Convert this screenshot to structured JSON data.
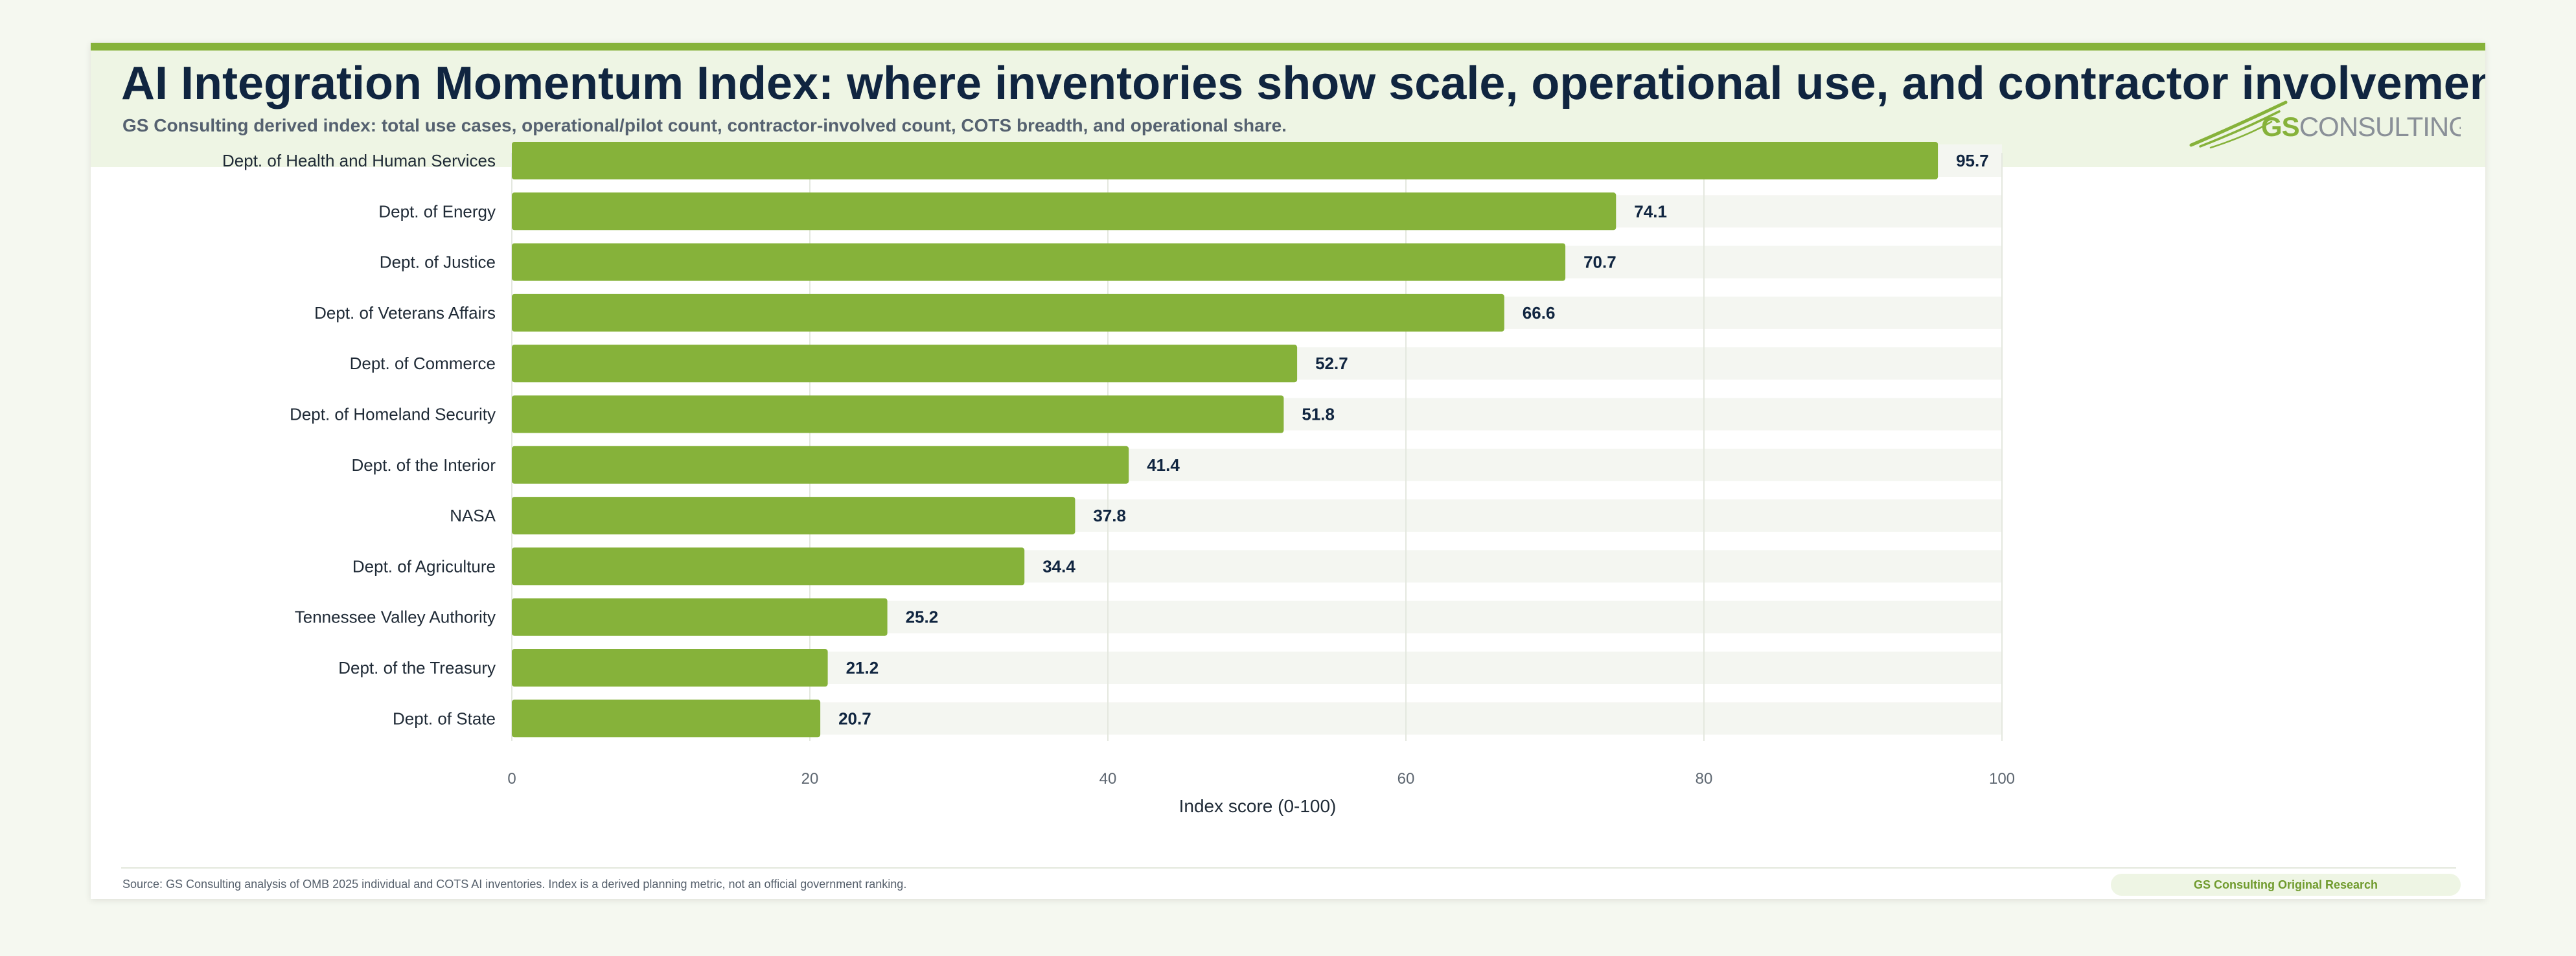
{
  "header": {
    "title": "AI Integration Momentum Index: where inventories show scale, operational use, and contractor involvement",
    "subtitle": "GS Consulting derived index: total use cases, operational/pilot count, contractor-involved count, COTS breadth, and operational share."
  },
  "logo": {
    "text_gs": "GS",
    "text_rest": "CONSULTING",
    "icon": "swoosh-logo-icon"
  },
  "colors": {
    "accent": "#86b23a",
    "bar": "#86b23a",
    "track": "#f4f6f1",
    "title": "#102540",
    "header_band": "#eef5e4"
  },
  "chart_data": {
    "type": "bar",
    "orientation": "horizontal",
    "categories": [
      "Dept. of Health and Human Services",
      "Dept. of Energy",
      "Dept. of Justice",
      "Dept. of Veterans Affairs",
      "Dept. of Commerce",
      "Dept. of Homeland Security",
      "Dept. of the Interior",
      "NASA",
      "Dept. of Agriculture",
      "Tennessee Valley Authority",
      "Dept. of the Treasury",
      "Dept. of State"
    ],
    "values": [
      95.7,
      74.1,
      70.7,
      66.6,
      52.7,
      51.8,
      41.4,
      37.8,
      34.4,
      25.2,
      21.2,
      20.7
    ],
    "value_labels": [
      "95.7",
      "74.1",
      "70.7",
      "66.6",
      "52.7",
      "51.8",
      "41.4",
      "37.8",
      "34.4",
      "25.2",
      "21.2",
      "20.7"
    ],
    "xlabel": "Index score (0-100)",
    "ylabel": "",
    "xlim": [
      0,
      100
    ],
    "xticks": [
      0,
      20,
      40,
      60,
      80,
      100
    ],
    "xtick_labels": [
      "0",
      "20",
      "40",
      "60",
      "80",
      "100"
    ],
    "grid": true,
    "legend": "none"
  },
  "footer": {
    "source": "Source: GS Consulting analysis of OMB 2025 individual and COTS AI inventories. Index is a derived planning metric, not an official government ranking.",
    "badge": "GS Consulting Original Research"
  }
}
